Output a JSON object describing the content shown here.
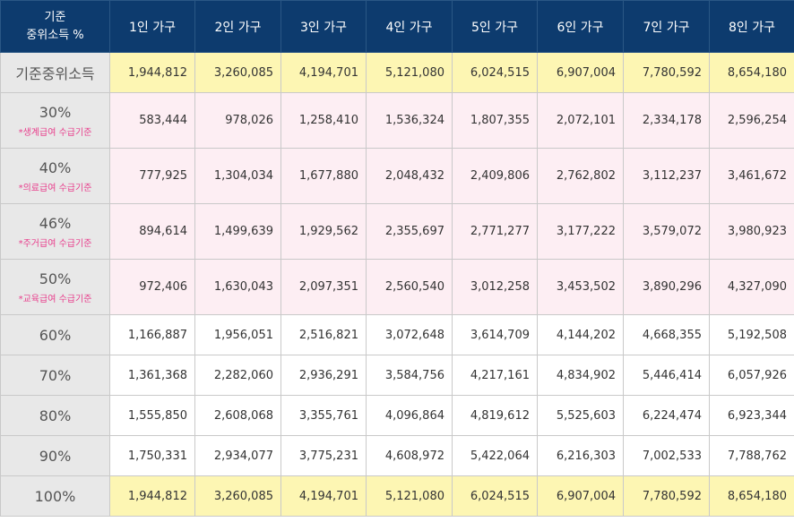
{
  "header": {
    "corner_line1": "기준",
    "corner_line2": "중위소득 %",
    "columns": [
      "1인 가구",
      "2인 가구",
      "3인 가구",
      "4인 가구",
      "5인 가구",
      "6인 가구",
      "7인 가구",
      "8인 가구"
    ]
  },
  "rows": [
    {
      "label": "기준중위소득",
      "sub": "",
      "style": "hl",
      "values": [
        "1,944,812",
        "3,260,085",
        "4,194,701",
        "5,121,080",
        "6,024,515",
        "6,907,004",
        "7,780,592",
        "8,654,180"
      ]
    },
    {
      "label": "30%",
      "sub": "*생계급여 수급기준",
      "style": "pink",
      "values": [
        "583,444",
        "978,026",
        "1,258,410",
        "1,536,324",
        "1,807,355",
        "2,072,101",
        "2,334,178",
        "2,596,254"
      ]
    },
    {
      "label": "40%",
      "sub": "*의료급여 수급기준",
      "style": "pink",
      "values": [
        "777,925",
        "1,304,034",
        "1,677,880",
        "2,048,432",
        "2,409,806",
        "2,762,802",
        "3,112,237",
        "3,461,672"
      ]
    },
    {
      "label": "46%",
      "sub": "*주거급여 수급기준",
      "style": "pink",
      "values": [
        "894,614",
        "1,499,639",
        "1,929,562",
        "2,355,697",
        "2,771,277",
        "3,177,222",
        "3,579,072",
        "3,980,923"
      ]
    },
    {
      "label": "50%",
      "sub": "*교육급여 수급기준",
      "style": "pink",
      "values": [
        "972,406",
        "1,630,043",
        "2,097,351",
        "2,560,540",
        "3,012,258",
        "3,453,502",
        "3,890,296",
        "4,327,090"
      ]
    },
    {
      "label": "60%",
      "sub": "",
      "style": "white",
      "values": [
        "1,166,887",
        "1,956,051",
        "2,516,821",
        "3,072,648",
        "3,614,709",
        "4,144,202",
        "4,668,355",
        "5,192,508"
      ]
    },
    {
      "label": "70%",
      "sub": "",
      "style": "white",
      "values": [
        "1,361,368",
        "2,282,060",
        "2,936,291",
        "3,584,756",
        "4,217,161",
        "4,834,902",
        "5,446,414",
        "6,057,926"
      ]
    },
    {
      "label": "80%",
      "sub": "",
      "style": "white",
      "values": [
        "1,555,850",
        "2,608,068",
        "3,355,761",
        "4,096,864",
        "4,819,612",
        "5,525,603",
        "6,224,474",
        "6,923,344"
      ]
    },
    {
      "label": "90%",
      "sub": "",
      "style": "white",
      "values": [
        "1,750,331",
        "2,934,077",
        "3,775,231",
        "4,608,972",
        "5,422,064",
        "6,216,303",
        "7,002,533",
        "7,788,762"
      ]
    },
    {
      "label": "100%",
      "sub": "",
      "style": "hl",
      "values": [
        "1,944,812",
        "3,260,085",
        "4,194,701",
        "5,121,080",
        "6,024,515",
        "6,907,004",
        "7,780,592",
        "8,654,180"
      ]
    }
  ],
  "colors": {
    "header_bg": "#0d3b6e",
    "label_bg": "#e8e8e8",
    "highlight_bg": "#fdf6b3",
    "pink_bg": "#fdeef3",
    "sub_text": "#e83e8c"
  }
}
